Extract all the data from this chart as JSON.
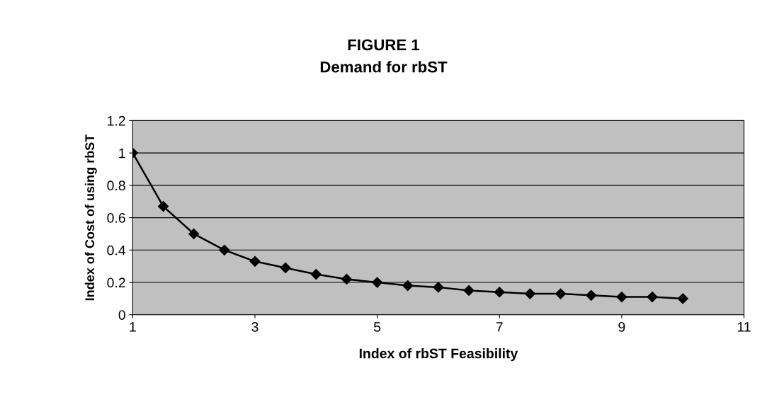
{
  "chart_data": {
    "type": "line",
    "title": "FIGURE 1",
    "subtitle": "Demand for rbST",
    "xlabel": "Index of rbST Feasibility",
    "ylabel": "Index of Cost of using rbST",
    "x": [
      1,
      1.5,
      2,
      2.5,
      3,
      3.5,
      4,
      4.5,
      5,
      5.5,
      6,
      6.5,
      7,
      7.5,
      8,
      8.5,
      9,
      9.5,
      10
    ],
    "series": [
      {
        "color": "#000000",
        "values": [
          1,
          0.67,
          0.5,
          0.4,
          0.33,
          0.29,
          0.25,
          0.22,
          0.2,
          0.18,
          0.17,
          0.15,
          0.14,
          0.13,
          0.13,
          0.12,
          0.11,
          0.11,
          0.1
        ]
      }
    ],
    "xlim": [
      1,
      11
    ],
    "xticks": [
      1,
      3,
      5,
      7,
      9,
      11
    ],
    "ylim": [
      0,
      1.2
    ],
    "yticks": [
      0,
      0.2,
      0.4,
      0.6,
      0.8,
      1,
      1.2
    ],
    "grid": "y",
    "marker": "diamond",
    "line_style": "solid",
    "legend": false
  }
}
